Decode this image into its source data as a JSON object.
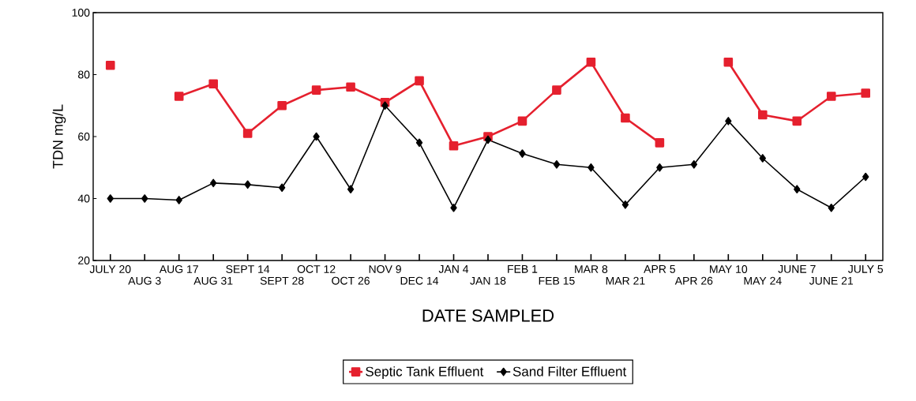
{
  "chart_data": {
    "type": "line",
    "xlabel": "DATE SAMPLED",
    "ylabel": "TDN mg/L",
    "categories": [
      "JULY 20",
      "AUG 3",
      "AUG 17",
      "AUG 31",
      "SEPT 14",
      "SEPT 28",
      "OCT 12",
      "OCT 26",
      "NOV 9",
      "DEC 14",
      "JAN 4",
      "JAN 18",
      "FEB 1",
      "FEB 15",
      "MAR 8",
      "MAR 21",
      "APR 5",
      "APR 26",
      "MAY 10",
      "MAY 24",
      "JUNE 7",
      "JUNE 21",
      "JULY 5"
    ],
    "series": [
      {
        "name": "Septic Tank  Effluent",
        "color": "#e5202e",
        "marker": "square",
        "values": [
          83,
          null,
          73,
          77,
          61,
          70,
          75,
          76,
          71,
          78,
          57,
          60,
          65,
          75,
          84,
          66,
          58,
          null,
          84,
          67,
          65,
          73,
          74
        ]
      },
      {
        "name": "Sand Filter  Effluent",
        "color": "#000000",
        "marker": "diamond",
        "values": [
          40,
          40,
          39.5,
          45,
          44.5,
          43.5,
          60,
          43,
          70,
          58,
          37,
          59,
          54.5,
          51,
          50,
          38,
          50,
          51,
          65,
          53,
          43,
          37,
          47
        ]
      }
    ],
    "ylim": [
      20,
      100
    ],
    "yticks": [
      20,
      40,
      60,
      80,
      100
    ],
    "grid": false,
    "legend": "bottom",
    "line_style": "solid"
  }
}
